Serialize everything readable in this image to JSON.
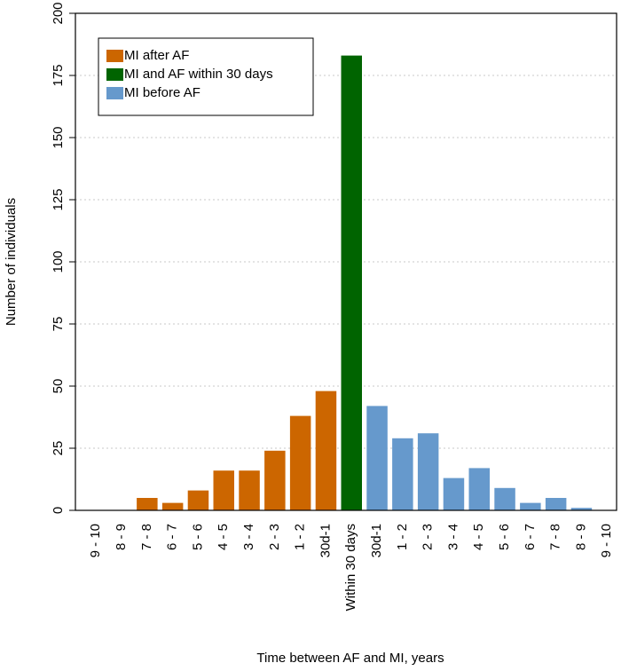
{
  "chart_data": {
    "type": "bar",
    "title": "",
    "xlabel": "Time between AF and MI, years",
    "ylabel": "Number of individuals",
    "ylim": [
      0,
      200
    ],
    "yticks": [
      0,
      25,
      50,
      75,
      100,
      125,
      150,
      175,
      200
    ],
    "grid": "horizontal dotted",
    "legend_position": "top-left",
    "categories": [
      "9 - 10",
      "8 - 9",
      "7 - 8",
      "6 - 7",
      "5 - 6",
      "4 - 5",
      "3 - 4",
      "2 - 3",
      "1 - 2",
      "30d-1",
      "Within 30 days",
      "30d-1",
      "1 - 2",
      "2 - 3",
      "3 - 4",
      "4 - 5",
      "5 - 6",
      "6 - 7",
      "7 - 8",
      "8 - 9",
      "9 - 10"
    ],
    "series": [
      {
        "name": "MI after AF",
        "color": "#cc6600",
        "values": [
          0,
          0,
          5,
          3,
          8,
          16,
          16,
          24,
          38,
          48,
          null,
          null,
          null,
          null,
          null,
          null,
          null,
          null,
          null,
          null,
          null
        ]
      },
      {
        "name": "MI and AF within 30 days",
        "color": "#006400",
        "values": [
          null,
          null,
          null,
          null,
          null,
          null,
          null,
          null,
          null,
          null,
          183,
          null,
          null,
          null,
          null,
          null,
          null,
          null,
          null,
          null,
          null
        ]
      },
      {
        "name": "MI before AF",
        "color": "#6699cc",
        "values": [
          null,
          null,
          null,
          null,
          null,
          null,
          null,
          null,
          null,
          null,
          null,
          42,
          29,
          31,
          13,
          17,
          9,
          3,
          5,
          1,
          0
        ]
      }
    ]
  }
}
